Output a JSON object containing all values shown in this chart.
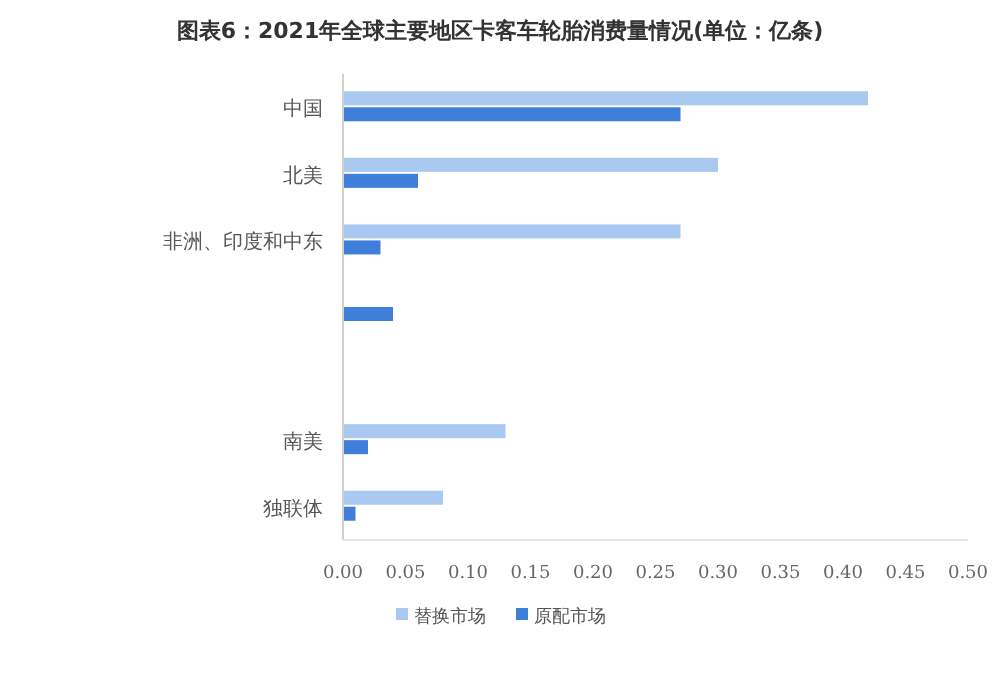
{
  "chart_data": {
    "type": "bar",
    "orientation": "horizontal",
    "title": "图表6：2021年全球主要地区卡客车轮胎消费量情况(单位：亿条)",
    "categories": [
      "中国",
      "北美",
      "非洲、印度和中东",
      null,
      null,
      "南美",
      "独联体"
    ],
    "series": [
      {
        "name": "替换市场",
        "color": "#a9c9f1",
        "values": [
          0.42,
          0.3,
          0.27,
          null,
          null,
          0.13,
          0.08
        ]
      },
      {
        "name": "原配市场",
        "color": "#3f7fd9",
        "values": [
          0.27,
          0.06,
          0.03,
          0.04,
          null,
          0.02,
          0.01
        ]
      }
    ],
    "xlim": [
      0,
      0.5
    ],
    "xticks": [
      {
        "value": 0,
        "label": "0.00"
      },
      {
        "value": 0.05,
        "label": "0.05"
      },
      {
        "value": 0.1,
        "label": "0.10"
      },
      {
        "value": 0.15,
        "label": "0.15"
      },
      {
        "value": 0.2,
        "label": "0.20"
      },
      {
        "value": 0.25,
        "label": "0.25"
      },
      {
        "value": 0.3,
        "label": "0.30"
      },
      {
        "value": 0.35,
        "label": "0.35"
      },
      {
        "value": 0.4,
        "label": "0.40"
      },
      {
        "value": 0.45,
        "label": "0.45"
      },
      {
        "value": 0.5,
        "label": "0.50"
      }
    ],
    "legend": "bottom"
  }
}
